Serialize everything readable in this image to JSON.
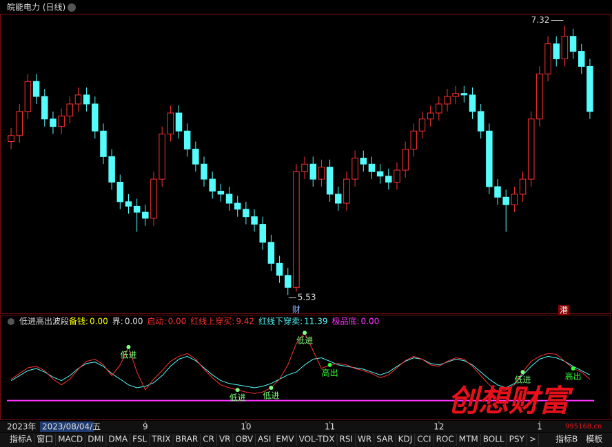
{
  "chart_data": {
    "type": "candlestick",
    "title": "皖能电力 (日线)",
    "categories": [
      null,
      null,
      null,
      null,
      null,
      null,
      null,
      null,
      null,
      null,
      null,
      null,
      null,
      null,
      null,
      null,
      "9",
      null,
      null,
      null,
      null,
      null,
      null,
      null,
      null,
      null,
      null,
      null,
      "10",
      null,
      null,
      null,
      null,
      null,
      null,
      null,
      null,
      null,
      "11",
      null,
      null,
      null,
      null,
      null,
      null,
      null,
      null,
      null,
      null,
      null,
      null,
      "12",
      null,
      null,
      null,
      null,
      null,
      null,
      null,
      null,
      null,
      null,
      null,
      "1",
      null,
      null,
      null,
      null,
      null,
      null
    ],
    "open": [
      6.55,
      6.59,
      6.75,
      6.95,
      6.85,
      6.7,
      6.65,
      6.72,
      6.8,
      6.86,
      6.8,
      6.62,
      6.45,
      6.28,
      6.15,
      6.12,
      6.08,
      6.04,
      6.3,
      6.6,
      6.74,
      6.62,
      6.5,
      6.4,
      6.3,
      6.22,
      6.2,
      6.14,
      6.1,
      6.05,
      6.0,
      5.88,
      5.74,
      5.66,
      5.58,
      6.35,
      6.4,
      6.3,
      6.38,
      6.2,
      6.14,
      6.3,
      6.44,
      6.4,
      6.35,
      6.32,
      6.28,
      6.36,
      6.5,
      6.62,
      6.7,
      6.74,
      6.8,
      6.85,
      6.87,
      6.86,
      6.75,
      6.62,
      6.25,
      6.18,
      6.13,
      6.2,
      6.3,
      6.7,
      7.0,
      7.2,
      7.1,
      7.25,
      7.15,
      7.05
    ],
    "high": [
      6.64,
      6.8,
      7.0,
      7.0,
      6.9,
      6.75,
      6.77,
      6.85,
      6.91,
      6.91,
      6.85,
      6.67,
      6.5,
      6.33,
      6.2,
      6.17,
      6.13,
      6.35,
      6.65,
      6.79,
      6.79,
      6.67,
      6.55,
      6.45,
      6.35,
      6.27,
      6.25,
      6.19,
      6.15,
      6.1,
      6.05,
      5.93,
      5.79,
      5.71,
      6.4,
      6.45,
      6.45,
      6.43,
      6.43,
      6.25,
      6.35,
      6.49,
      6.49,
      6.45,
      6.4,
      6.37,
      6.41,
      6.55,
      6.67,
      6.75,
      6.79,
      6.85,
      6.9,
      6.92,
      6.92,
      6.91,
      6.8,
      6.67,
      6.3,
      6.23,
      6.25,
      6.35,
      6.75,
      7.05,
      7.25,
      7.25,
      7.32,
      7.3,
      7.2,
      7.1
    ],
    "low": [
      6.5,
      6.54,
      6.7,
      6.8,
      6.65,
      6.6,
      6.6,
      6.67,
      6.75,
      6.75,
      6.57,
      6.4,
      6.23,
      6.1,
      6.07,
      5.95,
      5.99,
      5.99,
      6.25,
      6.55,
      6.57,
      6.45,
      6.35,
      6.25,
      6.17,
      6.15,
      6.09,
      6.05,
      6.0,
      5.95,
      5.83,
      5.69,
      5.61,
      5.53,
      5.55,
      6.3,
      6.25,
      6.25,
      6.15,
      6.09,
      6.09,
      6.25,
      6.35,
      6.3,
      6.27,
      6.23,
      6.23,
      6.31,
      6.45,
      6.57,
      6.65,
      6.69,
      6.75,
      6.8,
      6.81,
      6.7,
      6.57,
      6.2,
      6.13,
      5.95,
      6.08,
      6.15,
      6.25,
      6.65,
      6.95,
      7.05,
      7.05,
      7.1,
      7.0,
      6.7
    ],
    "close": [
      6.59,
      6.75,
      6.95,
      6.85,
      6.7,
      6.65,
      6.72,
      6.8,
      6.86,
      6.8,
      6.62,
      6.45,
      6.28,
      6.15,
      6.12,
      6.08,
      6.04,
      6.3,
      6.6,
      6.74,
      6.62,
      6.5,
      6.4,
      6.3,
      6.22,
      6.2,
      6.14,
      6.1,
      6.05,
      6.0,
      5.88,
      5.74,
      5.66,
      5.58,
      6.35,
      6.4,
      6.3,
      6.38,
      6.2,
      6.14,
      6.3,
      6.44,
      6.4,
      6.35,
      6.32,
      6.28,
      6.36,
      6.5,
      6.62,
      6.7,
      6.74,
      6.8,
      6.85,
      6.87,
      6.86,
      6.75,
      6.62,
      6.25,
      6.18,
      6.13,
      6.2,
      6.3,
      6.7,
      7.0,
      7.2,
      7.1,
      7.25,
      7.15,
      7.05,
      6.75
    ],
    "up_color": "#ff3232",
    "down_color": "#54fcfc",
    "ylim": [
      5.43,
      7.4
    ]
  },
  "indicator": {
    "title": "低进高出波段",
    "legend": [
      {
        "name": "备钱:",
        "value": 0,
        "value_label": "0.00",
        "color": "#ffff00"
      },
      {
        "name": "界:",
        "value": 0,
        "value_label": "0.00",
        "color": "#e0e0e0"
      },
      {
        "name": "启动:",
        "value": 0,
        "value_label": "0.00",
        "color": "#ff3232"
      },
      {
        "name": "红线上穿买:",
        "value": 9.42,
        "color": "#ff3232"
      },
      {
        "name": "红线下穿卖:",
        "value": 11.39,
        "color": "#54fcfc"
      },
      {
        "name": "极品底:",
        "value": 0,
        "value_label": "0.00",
        "color": "#ff33ff"
      }
    ],
    "lines": [
      {
        "color": "#54fcfc",
        "values": [
          28,
          35,
          42,
          45,
          40,
          33,
          28,
          35,
          45,
          52,
          54,
          48,
          38,
          30,
          22,
          18,
          20,
          25,
          35,
          48,
          58,
          62,
          56,
          46,
          36,
          28,
          24,
          22,
          20,
          18,
          20,
          24,
          30,
          36,
          40,
          50,
          58,
          60,
          55,
          50,
          48,
          46,
          44,
          40,
          36,
          40,
          48,
          55,
          60,
          58,
          52,
          50,
          54,
          58,
          56,
          50,
          40,
          30,
          22,
          18,
          24,
          36,
          48,
          58,
          62,
          60,
          55,
          48,
          42,
          36
        ]
      },
      {
        "color": "#ff3232",
        "values": [
          30,
          38,
          46,
          48,
          42,
          30,
          22,
          30,
          44,
          55,
          58,
          50,
          35,
          50,
          75,
          40,
          15,
          30,
          42,
          55,
          62,
          66,
          58,
          44,
          32,
          22,
          18,
          15,
          12,
          10,
          12,
          18,
          30,
          50,
          80,
          95,
          70,
          45,
          50,
          52,
          50,
          45,
          42,
          38,
          32,
          36,
          46,
          56,
          62,
          58,
          50,
          48,
          55,
          60,
          58,
          48,
          35,
          22,
          12,
          15,
          22,
          40,
          55,
          62,
          66,
          65,
          55,
          45,
          40,
          30
        ]
      }
    ],
    "ylim": [
      -10,
      100
    ],
    "annotations": [
      {
        "text": "低进",
        "index": 14,
        "color": "#80ff80"
      },
      {
        "text": "低进",
        "index": 27,
        "color": "#80ff80"
      },
      {
        "text": "低进",
        "index": 31,
        "color": "#80ff80"
      },
      {
        "text": "低进",
        "index": 35,
        "color": "#80ff80"
      },
      {
        "text": "高出",
        "index": 38,
        "color": "#33ff33"
      },
      {
        "text": "低进",
        "index": 61,
        "color": "#80ff80"
      },
      {
        "text": "高出",
        "index": 67,
        "color": "#33ff33"
      }
    ]
  },
  "axis_year": "2023年",
  "cursor_date": "2023/08/04/五",
  "markers": {
    "cai": "财",
    "gang": "港"
  },
  "tabs": [
    "指标A",
    "窗口",
    "MACD",
    "DMI",
    "DMA",
    "FSL",
    "TRIX",
    "BRAR",
    "CR",
    "VR",
    "OBV",
    "ASI",
    "EMV",
    "VOL-TDX",
    "RSI",
    "WR",
    "SAR",
    "KDJ",
    "CCI",
    "ROC",
    "MTM",
    "BOLL",
    "PSY",
    ">"
  ],
  "tabs_right": [
    "指标B",
    "模板"
  ],
  "watermark": {
    "text": "创想财富",
    "site": "995168.cn"
  }
}
